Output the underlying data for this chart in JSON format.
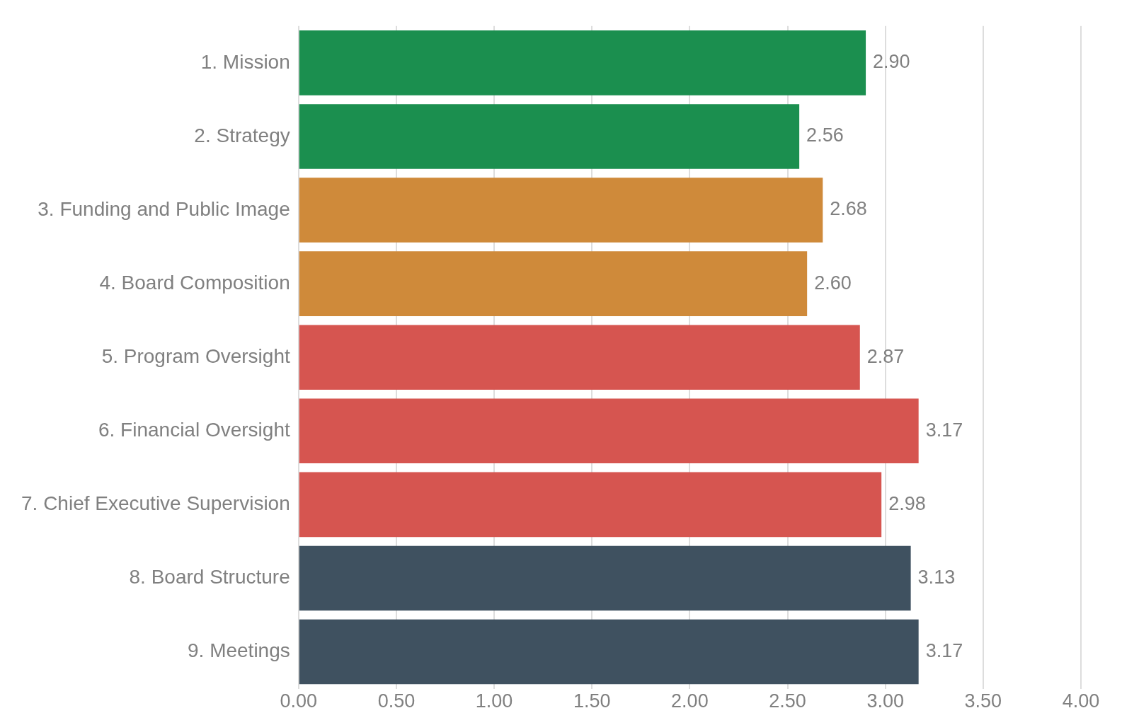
{
  "chart_data": {
    "type": "bar",
    "orientation": "horizontal",
    "categories": [
      "1. Mission",
      "2. Strategy",
      "3. Funding and Public Image",
      "4. Board Composition",
      "5. Program Oversight",
      "6. Financial Oversight",
      "7. Chief Executive Supervision",
      "8. Board Structure",
      "9. Meetings"
    ],
    "values": [
      2.9,
      2.56,
      2.68,
      2.6,
      2.87,
      3.17,
      2.98,
      3.13,
      3.17
    ],
    "value_labels": [
      "2.90",
      "2.56",
      "2.68",
      "2.60",
      "2.87",
      "3.17",
      "2.98",
      "3.13",
      "3.17"
    ],
    "colors": [
      "#1b8f4f",
      "#1b8f4f",
      "#cf8a3a",
      "#cf8a3a",
      "#d65550",
      "#d65550",
      "#d65550",
      "#3f5160",
      "#3f5160"
    ],
    "xlim": [
      0,
      4
    ],
    "xticks": [
      {
        "value": 0,
        "label": "0.00"
      },
      {
        "value": 0.5,
        "label": "0.50"
      },
      {
        "value": 1,
        "label": "1.00"
      },
      {
        "value": 1.5,
        "label": "1.50"
      },
      {
        "value": 2,
        "label": "2.00"
      },
      {
        "value": 2.5,
        "label": "2.50"
      },
      {
        "value": 3,
        "label": "3.00"
      },
      {
        "value": 3.5,
        "label": "3.50"
      },
      {
        "value": 4,
        "label": "4.00"
      }
    ],
    "grid": "x",
    "legend": false
  }
}
